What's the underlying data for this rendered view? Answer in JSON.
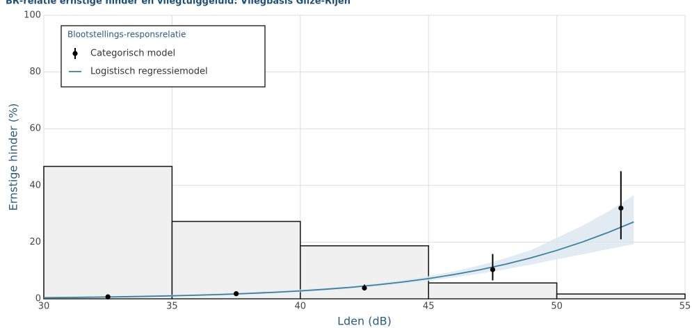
{
  "chart_data": {
    "type": "histogram",
    "title": "BR-relatie ernstige hinder en vliegtuiggeluid: Vliegbasis Gilze-Rijen",
    "xlabel": "Lden (dB)",
    "ylabel": "Ernstige hinder (%)",
    "xlim": [
      30,
      55
    ],
    "ylim": [
      0,
      100
    ],
    "xticks": [
      30,
      35,
      40,
      45,
      50,
      55
    ],
    "yticks": [
      0,
      20,
      40,
      60,
      80,
      100
    ],
    "grid": true,
    "bins": [
      30,
      35,
      40,
      45,
      50,
      55
    ],
    "counts": [
      46.7,
      27.3,
      18.7,
      5.6,
      1.7
    ],
    "bar_color": "#f0f0f0",
    "legend": {
      "title": "Blootstellings-responsrelatie",
      "position": "upper left"
    },
    "series": [
      {
        "name": "Categorisch model",
        "type": "errorbar",
        "color": "#000000",
        "x": [
          32.5,
          37.5,
          42.5,
          47.5,
          52.5
        ],
        "values": [
          0.7,
          1.8,
          3.8,
          10.3,
          32
        ],
        "lower": [
          0.4,
          1.3,
          3.0,
          6.5,
          21
        ],
        "upper": [
          1.1,
          2.4,
          5.0,
          15.8,
          45
        ]
      },
      {
        "name": "Logistisch regressiemodel",
        "type": "line",
        "color": "#3a7f9f",
        "band_color": "#dce8ee",
        "x": [
          30,
          31,
          32,
          33,
          34,
          35,
          36,
          37,
          38,
          39,
          40,
          41,
          42,
          43,
          44,
          45,
          46,
          47,
          48,
          49,
          50,
          51,
          52,
          53
        ],
        "values": [
          0.4,
          0.49,
          0.59,
          0.72,
          0.87,
          1.06,
          1.29,
          1.57,
          1.9,
          2.3,
          2.79,
          3.38,
          4.08,
          4.93,
          5.94,
          7.14,
          8.57,
          10.24,
          12.2,
          14.47,
          17.08,
          20.05,
          23.4,
          27.11
        ],
        "lower": [
          0.25,
          0.32,
          0.4,
          0.5,
          0.62,
          0.78,
          0.98,
          1.22,
          1.52,
          1.9,
          2.36,
          2.92,
          3.6,
          4.38,
          5.3,
          6.35,
          7.55,
          8.9,
          10.4,
          12.1,
          13.9,
          15.7,
          17.5,
          19.3
        ],
        "upper": [
          0.65,
          0.75,
          0.87,
          1.02,
          1.2,
          1.42,
          1.68,
          2.0,
          2.38,
          2.8,
          3.3,
          3.9,
          4.6,
          5.5,
          6.6,
          8.0,
          9.7,
          11.8,
          14.3,
          17.2,
          21.5,
          25.8,
          30.8,
          36.5
        ]
      }
    ]
  }
}
